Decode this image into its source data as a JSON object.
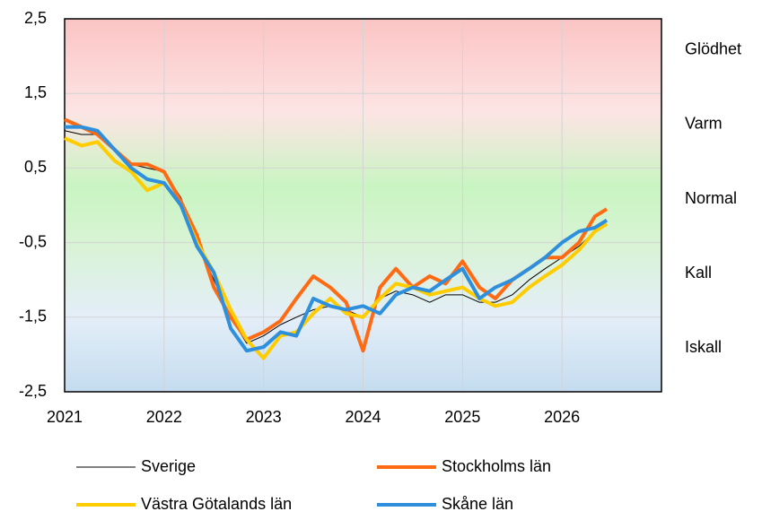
{
  "chart_data": {
    "type": "line",
    "x": [
      2021,
      2021.17,
      2021.33,
      2021.5,
      2021.67,
      2021.83,
      2022,
      2022.17,
      2022.33,
      2022.5,
      2022.67,
      2022.83,
      2023,
      2023.17,
      2023.33,
      2023.5,
      2023.67,
      2023.83,
      2024,
      2024.17,
      2024.33,
      2024.5,
      2024.67,
      2024.83,
      2025,
      2025.17,
      2025.33,
      2025.5,
      2025.67,
      2025.83,
      2026,
      2026.17,
      2026.33,
      2026.45
    ],
    "series": [
      {
        "name": "Sverige",
        "color": "#000000",
        "width": 1,
        "values": [
          1.0,
          0.95,
          0.95,
          0.75,
          0.55,
          0.5,
          0.45,
          0.1,
          -0.5,
          -1.0,
          -1.5,
          -1.85,
          -1.75,
          -1.6,
          -1.5,
          -1.4,
          -1.35,
          -1.4,
          -1.5,
          -1.25,
          -1.15,
          -1.2,
          -1.3,
          -1.2,
          -1.2,
          -1.3,
          -1.3,
          -1.2,
          -1.0,
          -0.85,
          -0.7,
          -0.55,
          -0.35,
          -0.25
        ]
      },
      {
        "name": "Stockholms län",
        "color": "#ff6a13",
        "width": 4,
        "values": [
          1.15,
          1.05,
          0.95,
          0.75,
          0.55,
          0.55,
          0.45,
          0.05,
          -0.4,
          -1.1,
          -1.5,
          -1.8,
          -1.7,
          -1.55,
          -1.25,
          -0.95,
          -1.1,
          -1.3,
          -1.95,
          -1.1,
          -0.85,
          -1.1,
          -0.95,
          -1.05,
          -0.75,
          -1.1,
          -1.25,
          -1.0,
          -0.85,
          -0.7,
          -0.7,
          -0.5,
          -0.15,
          -0.05
        ]
      },
      {
        "name": "Västra Götalands län",
        "color": "#ffcc00",
        "width": 4,
        "values": [
          0.9,
          0.8,
          0.85,
          0.6,
          0.45,
          0.2,
          0.3,
          0.0,
          -0.5,
          -0.9,
          -1.4,
          -1.8,
          -2.05,
          -1.75,
          -1.7,
          -1.45,
          -1.25,
          -1.45,
          -1.5,
          -1.25,
          -1.05,
          -1.1,
          -1.2,
          -1.15,
          -1.1,
          -1.25,
          -1.35,
          -1.3,
          -1.1,
          -0.95,
          -0.8,
          -0.6,
          -0.35,
          -0.25
        ]
      },
      {
        "name": "Skåne län",
        "color": "#2e8fdc",
        "width": 4,
        "values": [
          1.05,
          1.05,
          1.0,
          0.75,
          0.5,
          0.35,
          0.3,
          0.0,
          -0.55,
          -0.9,
          -1.65,
          -1.95,
          -1.9,
          -1.7,
          -1.75,
          -1.25,
          -1.35,
          -1.4,
          -1.35,
          -1.45,
          -1.2,
          -1.1,
          -1.15,
          -1.0,
          -0.85,
          -1.25,
          -1.1,
          -1.0,
          -0.85,
          -0.7,
          -0.5,
          -0.35,
          -0.3,
          -0.2
        ]
      }
    ],
    "xlim": [
      2021,
      2027
    ],
    "xticks": [
      2021,
      2022,
      2023,
      2024,
      2025,
      2026
    ],
    "ylim": [
      -2.5,
      2.5
    ],
    "yticks": [
      {
        "value": -2.5,
        "label": "-2,5"
      },
      {
        "value": -1.5,
        "label": "-1,5"
      },
      {
        "value": -0.5,
        "label": "-0,5"
      },
      {
        "value": 0.5,
        "label": "0,5"
      },
      {
        "value": 1.5,
        "label": "1,5"
      },
      {
        "value": 2.5,
        "label": "2,5"
      }
    ],
    "zones": [
      "Iskall",
      "Kall",
      "Normal",
      "Varm",
      "Glödhet"
    ],
    "grid": true
  }
}
